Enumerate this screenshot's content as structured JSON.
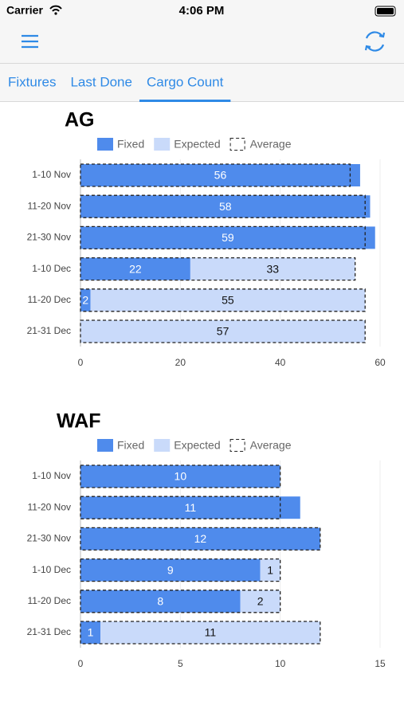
{
  "status_bar": {
    "carrier": "Carrier",
    "time": "4:06 PM"
  },
  "tabs": [
    "Fixtures",
    "Last Done",
    "Cargo Count"
  ],
  "active_tab": 2,
  "chart_data": [
    {
      "type": "bar",
      "title": "AG",
      "categories": [
        "1-10 Nov",
        "11-20 Nov",
        "21-30 Nov",
        "1-10 Dec",
        "11-20 Dec",
        "21-31 Dec"
      ],
      "series": [
        {
          "name": "Fixed",
          "color": "#4f8bec",
          "values": [
            56,
            58,
            59,
            22,
            2,
            null
          ]
        },
        {
          "name": "Expected",
          "color": "#c9dafa",
          "values": [
            null,
            null,
            null,
            33,
            55,
            57
          ]
        },
        {
          "name": "Average",
          "color": "#222222",
          "values": [
            54,
            57,
            57,
            55,
            57,
            57
          ]
        }
      ],
      "xlim": [
        0,
        60
      ],
      "xticks": [
        0,
        20,
        40,
        60
      ],
      "grid": true
    },
    {
      "type": "bar",
      "title": "WAF",
      "categories": [
        "1-10 Nov",
        "11-20 Nov",
        "21-30 Nov",
        "1-10 Dec",
        "11-20 Dec",
        "21-31 Dec"
      ],
      "series": [
        {
          "name": "Fixed",
          "color": "#4f8bec",
          "values": [
            10,
            11,
            12,
            9,
            8,
            1
          ]
        },
        {
          "name": "Expected",
          "color": "#c9dafa",
          "values": [
            null,
            null,
            null,
            1,
            2,
            11
          ]
        },
        {
          "name": "Average",
          "color": "#222222",
          "values": [
            10,
            10,
            12,
            10,
            10,
            12
          ]
        }
      ],
      "xlim": [
        0,
        15
      ],
      "xticks": [
        0,
        5,
        10,
        15
      ],
      "grid": true
    }
  ]
}
